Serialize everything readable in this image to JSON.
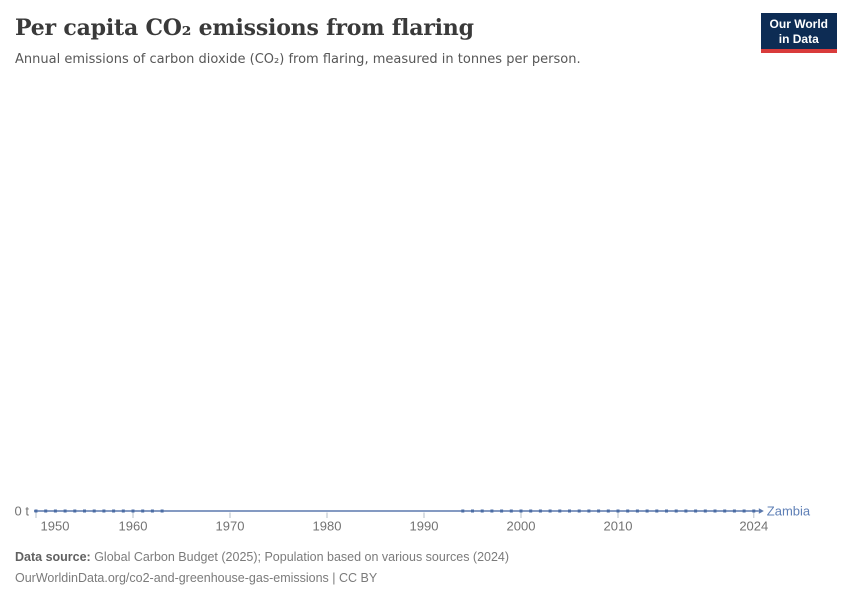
{
  "header": {
    "title": "Per capita CO₂ emissions from flaring",
    "subtitle": "Annual emissions of carbon dioxide (CO₂) from flaring, measured in tonnes per person."
  },
  "logo": {
    "line1": "Our World",
    "line2": "in Data"
  },
  "footer": {
    "source_label": "Data source:",
    "source_text": " Global Carbon Budget (2025); Population based on various sources (2024)",
    "citation": "OurWorldinData.org/co2-and-greenhouse-gas-emissions | CC BY"
  },
  "chart_data": {
    "type": "line",
    "title": "Per capita CO₂ emissions from flaring",
    "unit": "tonnes per person",
    "x_axis": {
      "ticks": [
        1950,
        1960,
        1970,
        1980,
        1990,
        2000,
        2010,
        2024
      ],
      "range": [
        1950,
        2024
      ]
    },
    "y_axis": {
      "label": "0 t",
      "ylim": [
        0,
        0
      ],
      "grid": false
    },
    "legend_position": "end-of-line",
    "series": [
      {
        "name": "Zambia",
        "color": "#5b79ad",
        "marker_color": "#4c6da4",
        "label_color": "#5e7fb6",
        "years": [
          1950,
          1951,
          1952,
          1953,
          1954,
          1955,
          1956,
          1957,
          1958,
          1959,
          1960,
          1961,
          1962,
          1963,
          1964,
          1965,
          1966,
          1967,
          1968,
          1969,
          1970,
          1971,
          1972,
          1973,
          1974,
          1975,
          1976,
          1977,
          1978,
          1979,
          1980,
          1981,
          1982,
          1983,
          1984,
          1985,
          1986,
          1987,
          1988,
          1989,
          1990,
          1991,
          1992,
          1993,
          1994,
          1995,
          1996,
          1997,
          1998,
          1999,
          2000,
          2001,
          2002,
          2003,
          2004,
          2005,
          2006,
          2007,
          2008,
          2009,
          2010,
          2011,
          2012,
          2013,
          2014,
          2015,
          2016,
          2017,
          2018,
          2019,
          2020,
          2021,
          2022,
          2023,
          2024
        ],
        "values": [
          0,
          0,
          0,
          0,
          0,
          0,
          0,
          0,
          0,
          0,
          0,
          0,
          0,
          0,
          0,
          0,
          0,
          0,
          0,
          0,
          0,
          0,
          0,
          0,
          0,
          0,
          0,
          0,
          0,
          0,
          0,
          0,
          0,
          0,
          0,
          0,
          0,
          0,
          0,
          0,
          0,
          0,
          0,
          0,
          0,
          0,
          0,
          0,
          0,
          0,
          0,
          0,
          0,
          0,
          0,
          0,
          0,
          0,
          0,
          0,
          0,
          0,
          0,
          0,
          0,
          0,
          0,
          0,
          0,
          0,
          0,
          0,
          0,
          0,
          0
        ],
        "marker_segments": [
          [
            1950,
            1963
          ],
          [
            1994,
            2024
          ]
        ]
      }
    ]
  }
}
